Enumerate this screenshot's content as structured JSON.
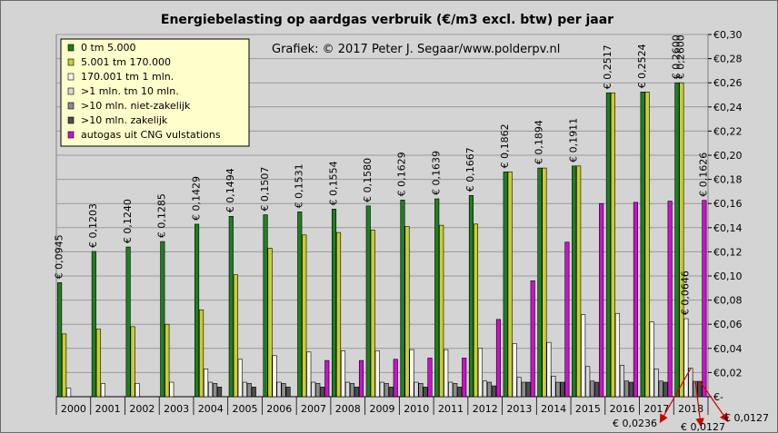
{
  "chart_data": {
    "type": "bar",
    "title": "Energiebelasting op aardgas verbruik (€/m3 excl. btw) per jaar",
    "credit": "Grafiek: © 2017 Peter J. Segaar/www.polderpv.nl",
    "xlabel": "",
    "ylabel": "",
    "ylim": [
      0,
      0.3
    ],
    "grid": true,
    "legend_position": "top-left",
    "y_ticks": [
      "€-",
      "€0,02",
      "€0,04",
      "€0,06",
      "€0,08",
      "€0,10",
      "€0,12",
      "€0,14",
      "€0,16",
      "€0,18",
      "€0,20",
      "€0,22",
      "€0,24",
      "€0,26",
      "€0,28",
      "€0,30"
    ],
    "categories": [
      "2000",
      "2001",
      "2002",
      "2003",
      "2004",
      "2005",
      "2006",
      "2007",
      "2008",
      "2009",
      "2010",
      "2011",
      "2012",
      "2013",
      "2014",
      "2015",
      "2016",
      "2017",
      "2018"
    ],
    "series": [
      {
        "name": "0  tm 5.000",
        "color": "#1e7f1e",
        "values": [
          0.0945,
          0.1203,
          0.124,
          0.1285,
          0.1429,
          0.1494,
          0.1507,
          0.1531,
          0.1554,
          0.158,
          0.1629,
          0.1639,
          0.1667,
          0.1862,
          0.1894,
          0.1911,
          0.2517,
          0.2524,
          0.26
        ]
      },
      {
        "name": "5.001 tm 170.000",
        "color": "#cccc33",
        "values": [
          0.052,
          0.056,
          0.058,
          0.06,
          0.072,
          0.101,
          0.123,
          0.134,
          0.136,
          0.138,
          0.141,
          0.142,
          0.143,
          0.1862,
          0.1894,
          0.1911,
          0.2517,
          0.2524,
          0.26
        ]
      },
      {
        "name": "170.001 tm 1 mln.",
        "color": "#f4f4f4",
        "values": [
          0.007,
          0.011,
          0.011,
          0.012,
          0.023,
          0.031,
          0.034,
          0.037,
          0.038,
          0.038,
          0.039,
          0.039,
          0.04,
          0.044,
          0.045,
          0.068,
          0.069,
          0.062,
          0.0646
        ]
      },
      {
        "name": ">1 mln. tm 10 mln.",
        "color": "#d8d8d8",
        "values": [
          0,
          0,
          0,
          0,
          0.012,
          0.012,
          0.012,
          0.012,
          0.012,
          0.012,
          0.012,
          0.012,
          0.013,
          0.016,
          0.017,
          0.025,
          0.026,
          0.023,
          0.0236
        ]
      },
      {
        "name": ">10 mln. niet-zakelijk",
        "color": "#8c8c8c",
        "values": [
          0,
          0,
          0,
          0,
          0.011,
          0.011,
          0.011,
          0.011,
          0.011,
          0.011,
          0.011,
          0.011,
          0.012,
          0.012,
          0.012,
          0.013,
          0.013,
          0.013,
          0.0127
        ]
      },
      {
        "name": ">10 mln. zakelijk",
        "color": "#4d4d4d",
        "values": [
          0,
          0,
          0,
          0,
          0.008,
          0.008,
          0.008,
          0.008,
          0.008,
          0.008,
          0.008,
          0.008,
          0.009,
          0.012,
          0.012,
          0.012,
          0.012,
          0.012,
          0.0127
        ]
      },
      {
        "name": "autogas uit CNG vulstations",
        "color": "#cc11cc",
        "values": [
          0,
          0,
          0,
          0,
          0,
          0,
          0,
          0.03,
          0.03,
          0.031,
          0.032,
          0.032,
          0.064,
          0.096,
          0.128,
          0.16,
          0.161,
          0.162,
          0.1626
        ]
      }
    ],
    "top_labels": [
      "€ 0,0945",
      "€ 0,1203",
      "€ 0,1240",
      "€ 0,1285",
      "€ 0,1429",
      "€ 0,1494",
      "€ 0,1507",
      "€ 0,1531",
      "€ 0,1554",
      "€ 0,1580",
      "€ 0,1629",
      "€ 0,1639",
      "€ 0,1667",
      "€ 0,1862",
      "€ 0,1894",
      "€ 0,1911",
      "€ 0,2517",
      "€ 0,2524",
      "€ 0,2600"
    ],
    "extra_labels_2018": {
      "yellow": "€ 0,2600",
      "cng": "€ 0,1626",
      "white": "€ 0,0646",
      "light_grey": "€ 0,0236",
      "mid_grey": "€ 0,0127",
      "dark_grey": "€ 0,0127"
    },
    "annotation_color": "#cc0000",
    "background_color": "#d4d4d4",
    "legend_background": "#ffffcc"
  }
}
